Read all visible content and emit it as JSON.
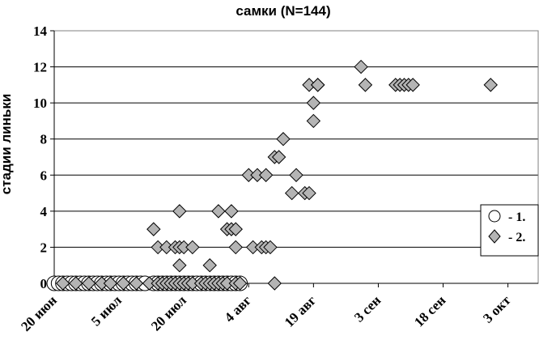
{
  "chart_data": {
    "type": "scatter",
    "title": "самки  (N=144)",
    "xlabel": "",
    "ylabel": "стадии линьки",
    "ylim": [
      0,
      14
    ],
    "yticks": [
      0,
      2,
      4,
      6,
      8,
      10,
      12,
      14
    ],
    "xlim": [
      "2000-06-20",
      "2000-10-10"
    ],
    "xticks": [
      {
        "date": "2000-06-20",
        "label": "20 июн"
      },
      {
        "date": "2000-07-05",
        "label": "5 июл"
      },
      {
        "date": "2000-07-20",
        "label": "20 июл"
      },
      {
        "date": "2000-08-04",
        "label": "4 авг"
      },
      {
        "date": "2000-08-19",
        "label": "19 авг"
      },
      {
        "date": "2000-09-03",
        "label": "3 сен"
      },
      {
        "date": "2000-09-18",
        "label": "18 сен"
      },
      {
        "date": "2000-10-03",
        "label": "3 окт"
      }
    ],
    "grid": "horizontal",
    "legend_position": "right",
    "colors": {
      "series2_fill": "#b4b4b4",
      "series1_fill": "#ffffff",
      "marker_stroke": "#000000",
      "grid": "#000000",
      "plot_border": "#808080"
    },
    "series": [
      {
        "name": "- 1.",
        "marker": "circle",
        "x": [
          "2000-06-20",
          "2000-06-21",
          "2000-06-22",
          "2000-06-23",
          "2000-06-24",
          "2000-06-25",
          "2000-06-26",
          "2000-06-27",
          "2000-06-28",
          "2000-06-29",
          "2000-06-30",
          "2000-07-01",
          "2000-07-02",
          "2000-07-03",
          "2000-07-04",
          "2000-07-05",
          "2000-07-06",
          "2000-07-07",
          "2000-07-08",
          "2000-07-09",
          "2000-07-10",
          "2000-07-11",
          "2000-07-13",
          "2000-07-14",
          "2000-07-15",
          "2000-07-16",
          "2000-07-17",
          "2000-07-18",
          "2000-07-19",
          "2000-07-20",
          "2000-07-21",
          "2000-07-22",
          "2000-07-23",
          "2000-07-24",
          "2000-07-25",
          "2000-07-26",
          "2000-07-27",
          "2000-07-28",
          "2000-07-29",
          "2000-07-30",
          "2000-07-31",
          "2000-08-01",
          "2000-08-02"
        ],
        "y": [
          0,
          0,
          0,
          0,
          0,
          0,
          0,
          0,
          0,
          0,
          0,
          0,
          0,
          0,
          0,
          0,
          0,
          0,
          0,
          0,
          0,
          0,
          0,
          0,
          0,
          0,
          0,
          0,
          0,
          0,
          0,
          0,
          0,
          0,
          0,
          0,
          0,
          0,
          0,
          0,
          0,
          0,
          0
        ]
      },
      {
        "name": "- 2.",
        "marker": "diamond",
        "x": [
          "2000-06-22",
          "2000-06-25",
          "2000-06-28",
          "2000-07-01",
          "2000-07-03",
          "2000-07-06",
          "2000-07-09",
          "2000-07-12",
          "2000-07-14",
          "2000-07-15",
          "2000-07-16",
          "2000-07-17",
          "2000-07-18",
          "2000-07-19",
          "2000-07-20",
          "2000-07-21",
          "2000-07-22",
          "2000-07-24",
          "2000-07-25",
          "2000-07-26",
          "2000-07-27",
          "2000-07-28",
          "2000-07-29",
          "2000-07-30",
          "2000-08-01",
          "2000-08-02",
          "2000-07-13",
          "2000-07-14",
          "2000-07-16",
          "2000-07-18",
          "2000-07-19",
          "2000-07-20",
          "2000-07-22",
          "2000-07-19",
          "2000-07-26",
          "2000-07-19",
          "2000-07-28",
          "2000-07-30",
          "2000-07-31",
          "2000-07-31",
          "2000-08-01",
          "2000-08-01",
          "2000-08-04",
          "2000-08-05",
          "2000-08-06",
          "2000-08-07",
          "2000-08-08",
          "2000-08-08",
          "2000-08-09",
          "2000-08-10",
          "2000-08-10",
          "2000-08-11",
          "2000-08-12",
          "2000-08-14",
          "2000-08-15",
          "2000-08-17",
          "2000-08-18",
          "2000-08-18",
          "2000-08-19",
          "2000-08-19",
          "2000-08-20",
          "2000-08-20",
          "2000-08-30",
          "2000-08-31",
          "2000-09-07",
          "2000-09-08",
          "2000-09-09",
          "2000-09-10",
          "2000-09-11",
          "2000-09-29"
        ],
        "y": [
          0,
          0,
          0,
          0,
          0,
          0,
          0,
          0,
          0,
          0,
          0,
          0,
          0,
          0,
          0,
          0,
          0,
          0,
          0,
          0,
          0,
          0,
          0,
          0,
          0,
          0,
          3,
          2,
          2,
          2,
          2,
          2,
          2,
          1,
          1,
          4,
          4,
          3,
          3,
          4,
          2,
          3,
          6,
          2,
          6,
          2,
          2,
          6,
          2,
          0,
          7,
          7,
          8,
          5,
          6,
          5,
          11,
          5,
          9,
          10,
          11,
          11,
          12,
          11,
          11,
          11,
          11,
          11,
          11,
          11
        ]
      }
    ]
  }
}
